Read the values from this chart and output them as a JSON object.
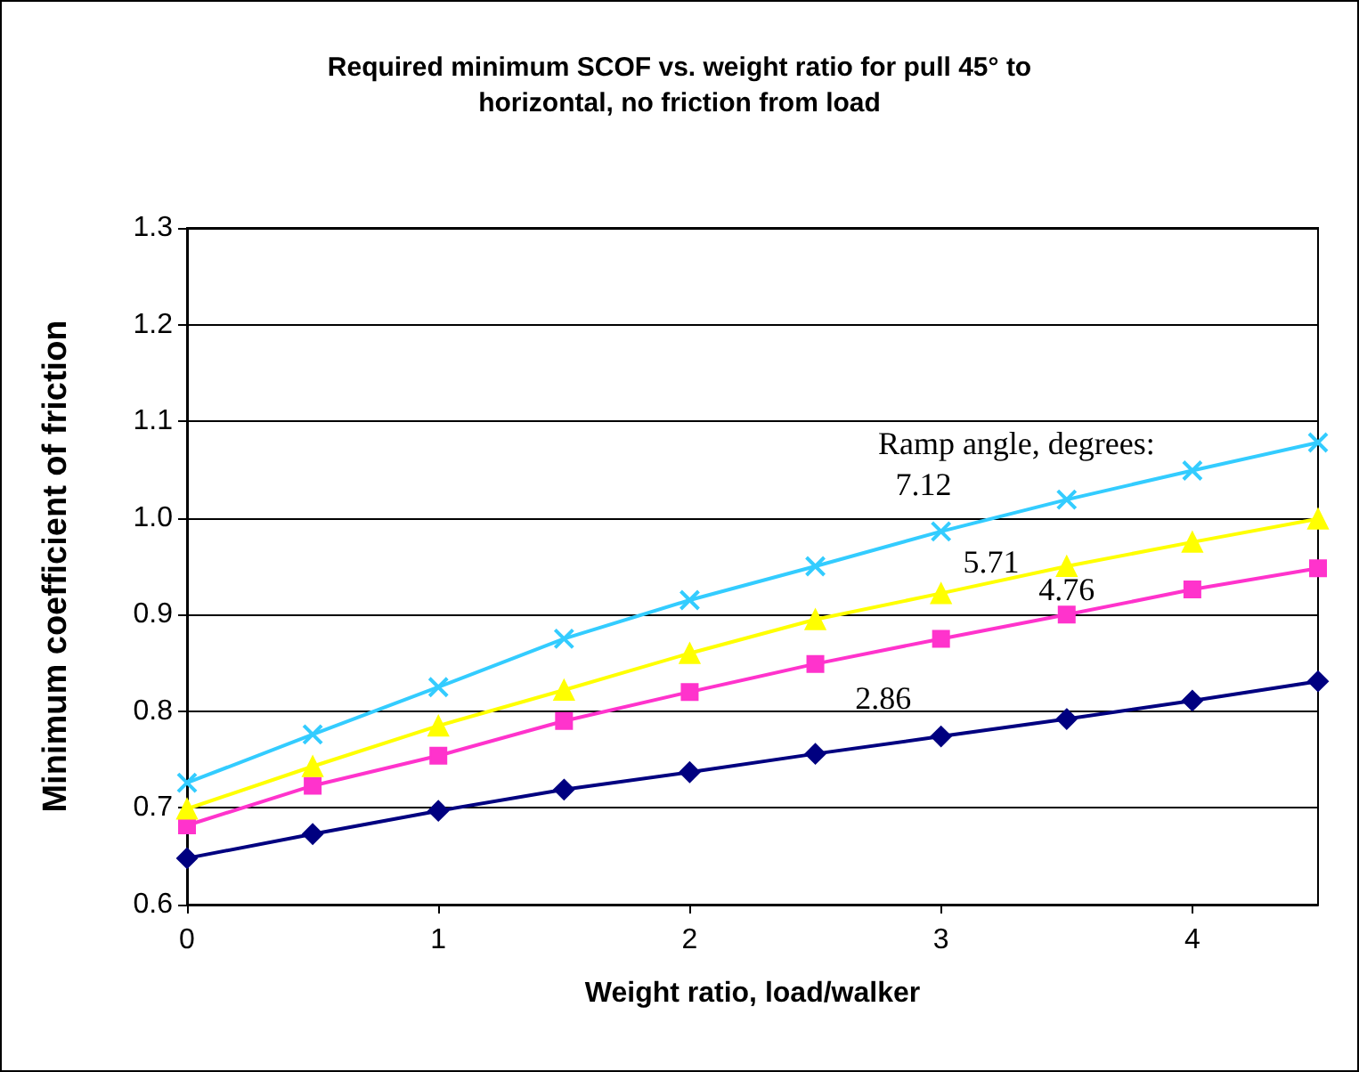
{
  "chart_data": {
    "type": "line",
    "title": "Required minimum SCOF vs. weight ratio for pull 45° to\nhorizontal, no friction from load",
    "xlabel": "Weight ratio, load/walker",
    "ylabel": "Minimum coefficient of friction",
    "x": [
      0,
      0.5,
      1,
      1.5,
      2,
      2.5,
      3,
      3.5,
      4,
      4.5
    ],
    "series": [
      {
        "name": "2.86",
        "color": "#000080",
        "marker": "diamond",
        "values": [
          0.648,
          0.673,
          0.697,
          0.719,
          0.737,
          0.756,
          0.774,
          0.792,
          0.811,
          0.831
        ]
      },
      {
        "name": "4.76",
        "color": "#ff33cc",
        "marker": "square",
        "values": [
          0.682,
          0.723,
          0.754,
          0.79,
          0.82,
          0.849,
          0.875,
          0.9,
          0.926,
          0.948
        ]
      },
      {
        "name": "5.71",
        "color": "#ffff00",
        "marker": "triangle",
        "values": [
          0.699,
          0.743,
          0.785,
          0.822,
          0.86,
          0.895,
          0.922,
          0.95,
          0.975,
          0.999
        ]
      },
      {
        "name": "7.12",
        "color": "#33ccff",
        "marker": "cross",
        "values": [
          0.726,
          0.776,
          0.825,
          0.875,
          0.915,
          0.95,
          0.986,
          1.019,
          1.049,
          1.078
        ]
      }
    ],
    "annotations": [
      "Ramp angle, degrees:"
    ],
    "xlim": [
      0,
      4.5
    ],
    "xticks": [
      0,
      1,
      2,
      3,
      4
    ],
    "ylim": [
      0.6,
      1.3
    ],
    "yticks": [
      0.6,
      0.7,
      0.8,
      0.9,
      {
        "value": 1,
        "label": "1.0"
      },
      1.1,
      1.2,
      1.3
    ],
    "grid": "y",
    "legend": false,
    "line_style": "solid"
  }
}
